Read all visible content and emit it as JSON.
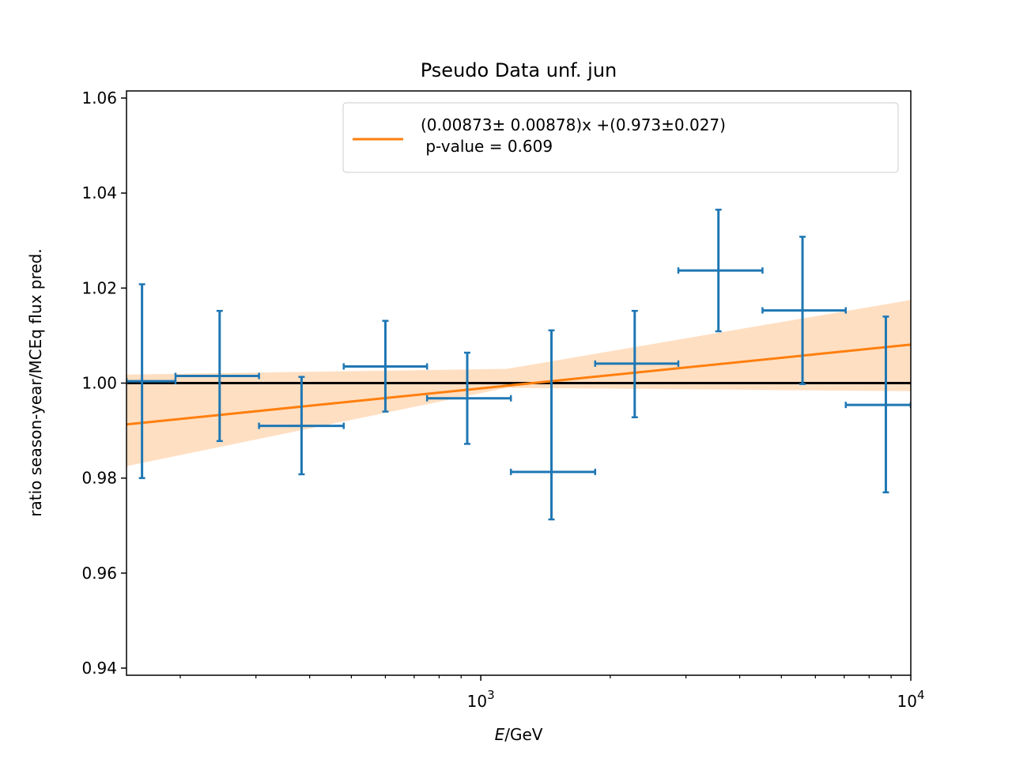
{
  "chart_data": {
    "type": "scatter",
    "title": "Pseudo Data unf. jun",
    "xlabel_italic": "E",
    "xlabel_rest": "/GeV",
    "ylabel": "ratio season-year/MCEq flux pred.",
    "xscale": "log",
    "xlim": [
      150,
      10000
    ],
    "ylim": [
      0.9385,
      1.0615
    ],
    "yticks": [
      0.94,
      0.96,
      0.98,
      1.0,
      1.02,
      1.04,
      1.06
    ],
    "ytick_labels": [
      "0.94",
      "0.96",
      "0.98",
      "1.00",
      "1.02",
      "1.04",
      "1.06"
    ],
    "xticks_major": [
      {
        "value": 1000,
        "base": "10",
        "exp": "3"
      },
      {
        "value": 10000,
        "base": "10",
        "exp": "4"
      }
    ],
    "xticks_minor": [
      200,
      300,
      400,
      500,
      600,
      700,
      800,
      900,
      2000,
      3000,
      4000,
      5000,
      6000,
      7000,
      8000,
      9000
    ],
    "reference_line": 1.0,
    "series": [
      {
        "kind": "errorbar",
        "color": "#1f77b4",
        "points": [
          {
            "x": 163,
            "y": 1.0004,
            "xlow": 150,
            "xhigh": 195,
            "ylow": 0.98,
            "yhigh": 1.0208
          },
          {
            "x": 247,
            "y": 1.0015,
            "xlow": 195,
            "xhigh": 305,
            "ylow": 0.9878,
            "yhigh": 1.0152
          },
          {
            "x": 383,
            "y": 0.991,
            "xlow": 305,
            "xhigh": 480,
            "ylow": 0.9808,
            "yhigh": 1.0013
          },
          {
            "x": 600,
            "y": 1.0035,
            "xlow": 480,
            "xhigh": 750,
            "ylow": 0.994,
            "yhigh": 1.0131
          },
          {
            "x": 930,
            "y": 0.9968,
            "xlow": 750,
            "xhigh": 1175,
            "ylow": 0.9872,
            "yhigh": 1.0064
          },
          {
            "x": 1460,
            "y": 0.9813,
            "xlow": 1175,
            "xhigh": 1845,
            "ylow": 0.9713,
            "yhigh": 1.0111
          },
          {
            "x": 2280,
            "y": 1.0041,
            "xlow": 1845,
            "xhigh": 2880,
            "ylow": 0.9928,
            "yhigh": 1.0152
          },
          {
            "x": 3570,
            "y": 1.0237,
            "xlow": 2880,
            "xhigh": 4520,
            "ylow": 1.0109,
            "yhigh": 1.0365
          },
          {
            "x": 5600,
            "y": 1.0153,
            "xlow": 4520,
            "xhigh": 7060,
            "ylow": 0.9998,
            "yhigh": 1.0308
          },
          {
            "x": 8750,
            "y": 0.9954,
            "xlow": 7060,
            "xhigh": 10000,
            "ylow": 0.977,
            "yhigh": 1.014
          }
        ]
      },
      {
        "kind": "line",
        "color": "#ff7f0e",
        "name_line1": "(0.00873± 0.00878)x +(0.973±0.027)",
        "name_line2": " p-value = 0.609",
        "x": [
          150,
          10000
        ],
        "y": [
          0.9913,
          1.0081
        ]
      }
    ],
    "band": {
      "color": "#ffdfc2",
      "x": [
        150,
        1150,
        10000
      ],
      "upper": [
        1.0018,
        1.003,
        1.0175
      ],
      "lower": [
        0.9825,
        0.999,
        0.9983
      ]
    },
    "legend_position": "upper right",
    "grid": false
  }
}
